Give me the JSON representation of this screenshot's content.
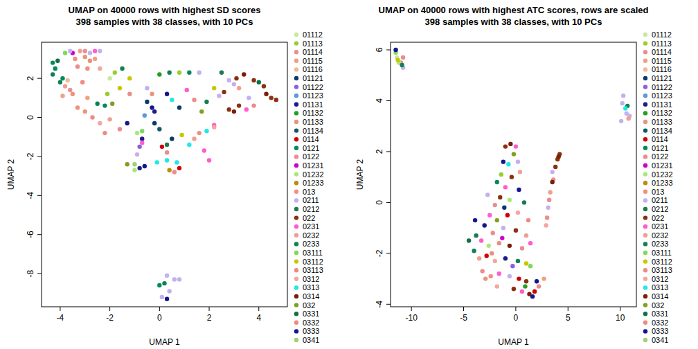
{
  "chart_data": [
    {
      "type": "scatter",
      "title": "UMAP on 40000 rows with highest SD scores",
      "subtitle": "398 samples with 38 classes, with 10 PCs",
      "x_label": "UMAP 1",
      "y_label": "UMAP 2",
      "xlim": [
        -4.75,
        5.15
      ],
      "ylim": [
        -9.7,
        3.85
      ],
      "xticks": [
        -4,
        -2,
        0,
        2,
        4
      ],
      "yticks": [
        -8,
        -6,
        -4,
        -2,
        0,
        2
      ],
      "marker": "circle",
      "series": [
        {
          "name": "01112",
          "color": "#c7e9a0",
          "x": [
            -2.0
          ],
          "values": [
            2.0
          ]
        },
        {
          "name": "01113",
          "color": "#9acd32",
          "x": [
            -2.1,
            -1.8,
            0.8
          ],
          "values": [
            1.2,
            2.3,
            2.3
          ]
        },
        {
          "name": "01114",
          "color": "#e89090",
          "x": [
            -3.0,
            -3.6
          ],
          "values": [
            3.4,
            1.4
          ]
        },
        {
          "name": "01115",
          "color": "#f0a080",
          "x": [
            -2.9
          ],
          "values": [
            1.0
          ]
        },
        {
          "name": "01116",
          "color": "#f5b895",
          "x": [
            -3.7
          ],
          "values": [
            1.9
          ]
        },
        {
          "name": "01121",
          "color": "#0b3a6e",
          "x": [
            -0.5,
            -0.2,
            0.5,
            0.8
          ],
          "values": [
            0.8,
            -0.3,
            -1.1,
            0.5
          ]
        },
        {
          "name": "01122",
          "color": "#8a5fe0",
          "x": [
            -0.8
          ],
          "values": [
            -1.5
          ]
        },
        {
          "name": "01123",
          "color": "#5b9bd5",
          "x": [
            -0.6
          ],
          "values": [
            0.1
          ]
        },
        {
          "name": "01131",
          "color": "#1c1c8c",
          "x": [
            -0.7,
            -0.8,
            -0.2
          ],
          "values": [
            -1.1,
            -2.6,
            0.3
          ]
        },
        {
          "name": "01132",
          "color": "#22a022",
          "x": [
            0.0
          ],
          "values": [
            2.2
          ]
        },
        {
          "name": "01133",
          "color": "#e8967a",
          "x": [
            -3.0,
            -3.0,
            -0.3
          ],
          "values": [
            3.1,
            0.3,
            1.2
          ]
        },
        {
          "name": "01134",
          "color": "#0e5a6a",
          "x": [
            0.0
          ],
          "values": [
            -0.6
          ]
        },
        {
          "name": "0114",
          "color": "#d00000",
          "x": [
            0.1,
            0.8
          ],
          "values": [
            -1.5,
            -2.6
          ]
        },
        {
          "name": "0121",
          "color": "#008a60",
          "x": [
            -4.3,
            -4.2,
            -3.9,
            -2.2,
            0.0,
            1.2
          ],
          "values": [
            2.8,
            2.5,
            2.0,
            0.6,
            -8.6,
            2.3
          ]
        },
        {
          "name": "0122",
          "color": "#ec8c8c",
          "x": [
            -3.3,
            -1.2,
            -1.6,
            0.3,
            0.6,
            1.6,
            1.4,
            3.8
          ],
          "values": [
            2.6,
            1.2,
            -0.6,
            -1.8,
            -2.8,
            -0.8,
            0.9,
            0.6
          ]
        },
        {
          "name": "01231",
          "color": "#cc00cc",
          "x": [
            -3.5
          ],
          "values": [
            3.3
          ]
        },
        {
          "name": "01232",
          "color": "#a8e878",
          "x": [
            -0.9,
            -1.0
          ],
          "values": [
            -0.8,
            -2.7
          ]
        },
        {
          "name": "01233",
          "color": "#c08a10",
          "x": [
            0.4
          ],
          "values": [
            -2.7
          ]
        },
        {
          "name": "013",
          "color": "#f29080",
          "x": [
            -3.4,
            -2.9,
            -3.5,
            -3.3
          ],
          "values": [
            3.0,
            2.5,
            1.2,
            0.5
          ]
        },
        {
          "name": "0211",
          "color": "#c4b0f0",
          "x": [
            -3.6,
            -2.8,
            -2.4,
            0.3,
            0.6,
            0.8,
            0.4,
            0.1,
            -0.5,
            -0.9,
            1.6,
            2.4,
            3.0,
            3.6,
            2.8
          ],
          "values": [
            3.4,
            3.3,
            3.4,
            -8.1,
            -8.3,
            -8.3,
            -8.9,
            -9.2,
            1.5,
            -1.9,
            2.3,
            1.1,
            1.7,
            1.0,
            1.9
          ]
        },
        {
          "name": "0212",
          "color": "#1f7a50",
          "x": [
            0.3,
            2.5
          ],
          "values": [
            -1.4,
            2.3
          ]
        },
        {
          "name": "022",
          "color": "#8b3010",
          "x": [
            2.6,
            2.8,
            3.2,
            3.1,
            3.8,
            4.2,
            4.5,
            4.7
          ],
          "values": [
            1.3,
            0.4,
            0.6,
            2.0,
            1.9,
            1.6,
            1.0,
            0.9
          ]
        },
        {
          "name": "0231",
          "color": "#ff5cd0",
          "x": [
            -2.6,
            -0.7,
            1.8,
            2.0,
            1.1,
            3.5,
            2.2
          ],
          "values": [
            3.4,
            -1.3,
            -1.7,
            -2.2,
            1.4,
            0.4,
            -0.4
          ]
        },
        {
          "name": "0232",
          "color": "#eea090",
          "x": [
            -3.2,
            -2.6,
            -3.8,
            -3.9,
            -2.0,
            1.4,
            3.2
          ],
          "values": [
            3.4,
            3.0,
            1.6,
            1.1,
            -0.1,
            -1.1,
            1.5
          ]
        },
        {
          "name": "0233",
          "color": "#118055",
          "x": [
            -4.3,
            -4.0,
            -2.5,
            -1.5,
            0.2,
            0.4,
            1.9
          ],
          "values": [
            2.2,
            1.8,
            0.7,
            2.5,
            -8.5,
            2.3,
            0.8
          ]
        },
        {
          "name": "03111",
          "color": "#7ed957",
          "x": [
            -3.8,
            -0.7
          ],
          "values": [
            3.3,
            -0.7
          ]
        },
        {
          "name": "03112",
          "color": "#c8c800",
          "x": [
            -1.6,
            -1.2,
            0.9,
            2.2
          ],
          "values": [
            1.5,
            2.0,
            -0.9,
            1.5
          ]
        },
        {
          "name": "03113",
          "color": "#f08c7c",
          "x": [
            -2.8,
            -2.7
          ],
          "values": [
            2.9,
            0.0
          ]
        },
        {
          "name": "0312",
          "color": "#f4a6a0",
          "x": [
            -2.4,
            -2.4,
            2.2
          ],
          "values": [
            2.5,
            -0.3,
            -0.5
          ]
        },
        {
          "name": "0313",
          "color": "#20e8e8",
          "x": [
            0.3,
            0.7,
            -0.1,
            1.2,
            1.9,
            0.5
          ],
          "values": [
            -2.2,
            -2.3,
            -2.3,
            -1.4,
            -0.7,
            0.9
          ]
        },
        {
          "name": "0314",
          "color": "#7a2008",
          "x": [
            3.0,
            3.4,
            4.3
          ],
          "values": [
            0.3,
            2.2,
            1.2
          ]
        },
        {
          "name": "032",
          "color": "#80a020",
          "x": [
            -1.9,
            -1.3,
            1.7
          ],
          "values": [
            0.7,
            -2.4,
            0.3
          ]
        },
        {
          "name": "0331",
          "color": "#0f7048",
          "x": [
            -4.1,
            4.0
          ],
          "values": [
            2.9,
            1.8
          ]
        },
        {
          "name": "0332",
          "color": "#f08a80",
          "x": [
            -3.1,
            -2.2
          ],
          "values": [
            1.8,
            -0.8
          ]
        },
        {
          "name": "0333",
          "color": "#16168c",
          "x": [
            -1.3,
            0.3,
            -0.3,
            -0.6,
            0.3
          ],
          "values": [
            -0.3,
            -9.3,
            0.5,
            -2.5,
            1.2
          ]
        },
        {
          "name": "0341",
          "color": "#a0d070",
          "x": [
            -1.0
          ],
          "values": [
            -2.4
          ]
        }
      ]
    },
    {
      "type": "scatter",
      "title": "UMAP on 40000 rows with highest ATC scores, rows are scaled",
      "subtitle": "398 samples with 38 classes, with 10 PCs",
      "x_label": "UMAP 1",
      "y_label": "UMAP 2",
      "xlim": [
        -12.0,
        11.55
      ],
      "ylim": [
        -4.1,
        6.3
      ],
      "xticks": [
        -10,
        -5,
        0,
        5,
        10
      ],
      "yticks": [
        -4,
        -2,
        0,
        2,
        4,
        6
      ],
      "marker": "circle",
      "series": [
        {
          "name": "01112",
          "color": "#c7e9a0",
          "x": [
            -11.4
          ],
          "values": [
            5.7
          ]
        },
        {
          "name": "01113",
          "color": "#9acd32",
          "x": [
            -1.4
          ],
          "values": [
            1.1
          ]
        },
        {
          "name": "01114",
          "color": "#e89090",
          "x": [
            -11.0
          ],
          "values": [
            5.5
          ]
        },
        {
          "name": "01115",
          "color": "#f0a080",
          "x": [
            2.7
          ],
          "values": [
            -3.0
          ]
        },
        {
          "name": "01116",
          "color": "#f5b895",
          "x": [],
          "values": []
        },
        {
          "name": "01121",
          "color": "#0b3a6e",
          "x": [
            -1.1
          ],
          "values": [
            -0.2
          ]
        },
        {
          "name": "01122",
          "color": "#8a5fe0",
          "x": [
            -0.3
          ],
          "values": [
            -2.5
          ]
        },
        {
          "name": "01123",
          "color": "#5b9bd5",
          "x": [],
          "values": []
        },
        {
          "name": "01131",
          "color": "#1c1c8c",
          "x": [
            -1.0
          ],
          "values": [
            -2.2
          ]
        },
        {
          "name": "01132",
          "color": "#22a022",
          "x": [
            0.9
          ],
          "values": [
            -3.3
          ]
        },
        {
          "name": "01133",
          "color": "#e8967a",
          "x": [
            -2.9
          ],
          "values": [
            -3.0
          ]
        },
        {
          "name": "01134",
          "color": "#0e5a6a",
          "x": [],
          "values": []
        },
        {
          "name": "0114",
          "color": "#d00000",
          "x": [
            -0.8,
            -2.8,
            0.3,
            1.8
          ],
          "values": [
            -0.5,
            -2.1,
            -3.0,
            -3.5
          ]
        },
        {
          "name": "0121",
          "color": "#008a60",
          "x": [
            -1.8
          ],
          "values": [
            0.8
          ]
        },
        {
          "name": "0122",
          "color": "#ec8c8c",
          "x": [
            -10.8,
            3.6,
            3.2,
            3.0,
            -2.0,
            -2.2,
            0.6,
            -3.2,
            2.2
          ],
          "values": [
            5.7,
            0.9,
            0.1,
            -0.6,
            -0.1,
            -1.2,
            -1.8,
            -2.7,
            -3.3
          ]
        },
        {
          "name": "01231",
          "color": "#cc00cc",
          "x": [
            -1.3
          ],
          "values": [
            -1.4
          ]
        },
        {
          "name": "01232",
          "color": "#a8e878",
          "x": [
            -11.2,
            -0.6,
            -2.6
          ],
          "values": [
            5.5,
            0.1,
            -1.7
          ]
        },
        {
          "name": "01233",
          "color": "#c08a10",
          "x": [],
          "values": []
        },
        {
          "name": "013",
          "color": "#f29080",
          "x": [
            -2.4
          ],
          "values": [
            -2.9
          ]
        },
        {
          "name": "0211",
          "color": "#c4b0f0",
          "x": [
            -10.8,
            10.3,
            10.1,
            10.6,
            10.2,
            10.9,
            3.5,
            3.1,
            0.2,
            -1.2,
            -0.6,
            -2.7
          ],
          "values": [
            5.3,
            4.2,
            3.2,
            3.5,
            3.9,
            3.4,
            1.2,
            -0.2,
            1.6,
            -1.0,
            -2.9,
            0.3
          ]
        },
        {
          "name": "0212",
          "color": "#1f7a50",
          "x": [
            0.8,
            -3.8
          ],
          "values": [
            0.0,
            -1.3
          ]
        },
        {
          "name": "022",
          "color": "#8b3010",
          "x": [
            4.2,
            4.0,
            3.8,
            -1.0,
            -0.4,
            -1.5,
            0.0,
            1.0,
            -0.2
          ],
          "values": [
            1.9,
            1.7,
            1.4,
            2.2,
            1.0,
            0.2,
            -1.1,
            -3.1,
            -3.4
          ]
        },
        {
          "name": "0231",
          "color": "#ff5cd0",
          "x": [
            0.0,
            -1.0,
            -2.5,
            -3.3,
            1.4,
            -1.6,
            0.6
          ],
          "values": [
            2.2,
            0.6,
            -0.5,
            -1.5,
            -1.6,
            -2.8,
            -3.5
          ]
        },
        {
          "name": "0232",
          "color": "#eea090",
          "x": [
            10.8,
            3.3,
            0.4,
            1.0,
            -3.5
          ],
          "values": [
            3.3,
            0.4,
            1.2,
            -1.3,
            -2.2
          ]
        },
        {
          "name": "0233",
          "color": "#118055",
          "x": [
            -10.9,
            10.7,
            -4.0,
            0.2
          ],
          "values": [
            5.4,
            3.8,
            -1.9,
            -2.3
          ]
        },
        {
          "name": "03111",
          "color": "#7ed957",
          "x": [
            -11.5,
            1.4
          ],
          "values": [
            5.9,
            -2.5
          ]
        },
        {
          "name": "03112",
          "color": "#c8c800",
          "x": [
            -11.3,
            1.0
          ],
          "values": [
            5.6,
            -2.4
          ]
        },
        {
          "name": "03113",
          "color": "#f08c7c",
          "x": [
            1.2,
            -1.6
          ],
          "values": [
            -0.7,
            -1.6
          ]
        },
        {
          "name": "0312",
          "color": "#f4a6a0",
          "x": [
            2.9,
            0.2,
            -2.0,
            -1.8
          ],
          "values": [
            -0.9,
            -0.4,
            -2.3,
            -3.3
          ]
        },
        {
          "name": "0313",
          "color": "#20e8e8",
          "x": [
            10.5,
            -0.7
          ],
          "values": [
            3.7,
            1.5
          ]
        },
        {
          "name": "0314",
          "color": "#7a2008",
          "x": [
            4.1,
            3.5,
            -0.5,
            -0.6,
            1.3
          ],
          "values": [
            1.8,
            0.8,
            2.3,
            -1.7,
            -3.6
          ]
        },
        {
          "name": "032",
          "color": "#80a020",
          "x": [
            -0.2,
            -1.8
          ],
          "values": [
            1.9,
            -0.7
          ]
        },
        {
          "name": "0331",
          "color": "#0f7048",
          "x": [
            -4.5
          ],
          "values": [
            -1.5
          ]
        },
        {
          "name": "0332",
          "color": "#f08a80",
          "x": [
            -2.3
          ],
          "values": [
            -2.0
          ]
        },
        {
          "name": "0333",
          "color": "#16168c",
          "x": [
            -11.5,
            -1.2,
            0.3,
            -3.0,
            2.0,
            1.6,
            -3.9
          ],
          "values": [
            6.0,
            1.6,
            0.5,
            -0.9,
            -3.1,
            -3.7,
            -0.7
          ]
        },
        {
          "name": "0341",
          "color": "#a0d070",
          "x": [],
          "values": []
        }
      ]
    }
  ]
}
